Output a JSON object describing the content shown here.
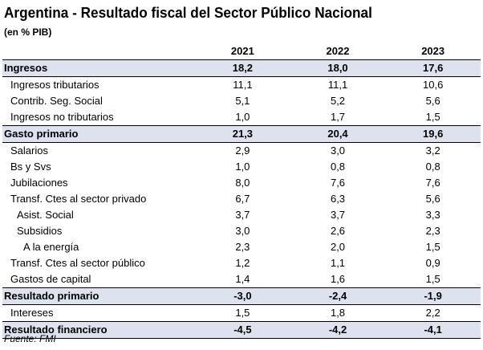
{
  "title": "Argentina - Resultado fiscal del Sector Público Nacional",
  "subtitle": "(en % PIB)",
  "years": [
    "2021",
    "2022",
    "2023"
  ],
  "rows": [
    {
      "label": "Ingresos",
      "values": [
        "18,2",
        "18,0",
        "17,6"
      ]
    },
    {
      "label": "Ingresos tributarios",
      "values": [
        "11,1",
        "11,1",
        "10,6"
      ]
    },
    {
      "label": "Contrib. Seg. Social",
      "values": [
        "5,1",
        "5,2",
        "5,6"
      ]
    },
    {
      "label": "Ingresos no tributarios",
      "values": [
        "1,0",
        "1,7",
        "1,5"
      ]
    },
    {
      "label": "Gasto primario",
      "values": [
        "21,3",
        "20,4",
        "19,6"
      ]
    },
    {
      "label": "Salarios",
      "values": [
        "2,9",
        "3,0",
        "3,2"
      ]
    },
    {
      "label": "Bs y Svs",
      "values": [
        "1,0",
        "0,8",
        "0,8"
      ]
    },
    {
      "label": "Jubilaciones",
      "values": [
        "8,0",
        "7,6",
        "7,6"
      ]
    },
    {
      "label": "Transf. Ctes al sector privado",
      "values": [
        "6,7",
        "6,3",
        "5,6"
      ]
    },
    {
      "label": "Asist. Social",
      "values": [
        "3,7",
        "3,7",
        "3,3"
      ]
    },
    {
      "label": "Subsidios",
      "values": [
        "3,0",
        "2,6",
        "2,3"
      ]
    },
    {
      "label": "A la energía",
      "values": [
        "2,3",
        "2,0",
        "1,5"
      ]
    },
    {
      "label": "Transf. Ctes al sector público",
      "values": [
        "1,2",
        "1,1",
        "0,9"
      ]
    },
    {
      "label": "Gastos de capital",
      "values": [
        "1,4",
        "1,6",
        "1,5"
      ]
    },
    {
      "label": "Resultado primario",
      "values": [
        "-3,0",
        "-2,4",
        "-1,9"
      ]
    },
    {
      "label": "Intereses",
      "values": [
        "1,5",
        "1,8",
        "2,2"
      ]
    },
    {
      "label": "Resultado financiero",
      "values": [
        "-4,5",
        "-4,2",
        "-4,1"
      ]
    }
  ],
  "footer": "Fuente: FMI"
}
